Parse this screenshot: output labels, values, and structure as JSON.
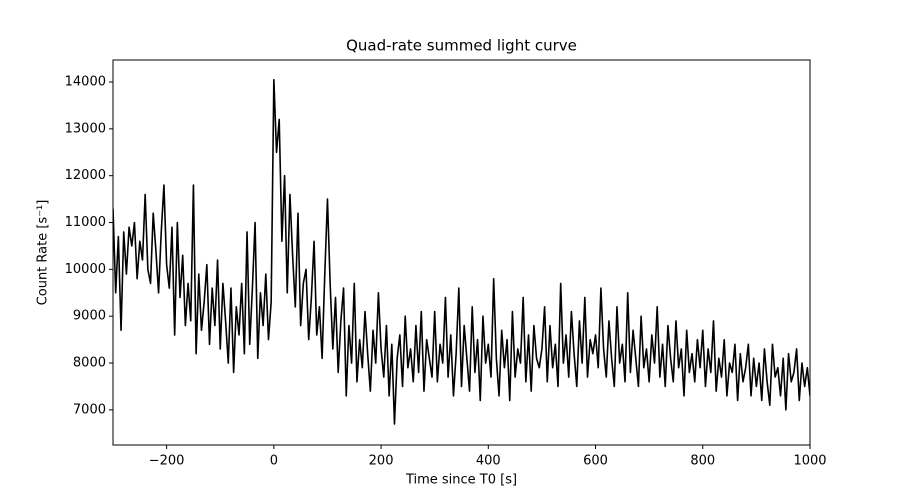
{
  "chart_data": {
    "type": "line",
    "title": "Quad-rate summed light curve",
    "xlabel": "Time since T0 [s]",
    "ylabel": "Count Rate [s⁻¹]",
    "xlim": [
      -300,
      1000
    ],
    "ylim": [
      6250,
      14470
    ],
    "xticks": [
      {
        "value": -200,
        "label": "−200"
      },
      0,
      200,
      400,
      600,
      800,
      1000
    ],
    "yticks": [
      7000,
      8000,
      9000,
      10000,
      11000,
      12000,
      13000,
      14000
    ],
    "x": [
      -300,
      -295,
      -290,
      -285,
      -280,
      -275,
      -270,
      -265,
      -260,
      -255,
      -250,
      -245,
      -240,
      -235,
      -230,
      -225,
      -220,
      -215,
      -210,
      -205,
      -200,
      -195,
      -190,
      -185,
      -180,
      -175,
      -170,
      -165,
      -160,
      -155,
      -150,
      -145,
      -140,
      -135,
      -130,
      -125,
      -120,
      -115,
      -110,
      -105,
      -100,
      -95,
      -90,
      -85,
      -80,
      -75,
      -70,
      -65,
      -60,
      -55,
      -50,
      -45,
      -40,
      -35,
      -30,
      -25,
      -20,
      -15,
      -10,
      -5,
      0,
      5,
      10,
      15,
      20,
      25,
      30,
      35,
      40,
      45,
      50,
      55,
      60,
      65,
      70,
      75,
      80,
      85,
      90,
      95,
      100,
      105,
      110,
      115,
      120,
      125,
      130,
      135,
      140,
      145,
      150,
      155,
      160,
      165,
      170,
      175,
      180,
      185,
      190,
      195,
      200,
      205,
      210,
      215,
      220,
      225,
      230,
      235,
      240,
      245,
      250,
      255,
      260,
      265,
      270,
      275,
      280,
      285,
      290,
      295,
      300,
      305,
      310,
      315,
      320,
      325,
      330,
      335,
      340,
      345,
      350,
      355,
      360,
      365,
      370,
      375,
      380,
      385,
      390,
      395,
      400,
      405,
      410,
      415,
      420,
      425,
      430,
      435,
      440,
      445,
      450,
      455,
      460,
      465,
      470,
      475,
      480,
      485,
      490,
      495,
      500,
      505,
      510,
      515,
      520,
      525,
      530,
      535,
      540,
      545,
      550,
      555,
      560,
      565,
      570,
      575,
      580,
      585,
      590,
      595,
      600,
      605,
      610,
      615,
      620,
      625,
      630,
      635,
      640,
      645,
      650,
      655,
      660,
      665,
      670,
      675,
      680,
      685,
      690,
      695,
      700,
      705,
      710,
      715,
      720,
      725,
      730,
      735,
      740,
      745,
      750,
      755,
      760,
      765,
      770,
      775,
      780,
      785,
      790,
      795,
      800,
      805,
      810,
      815,
      820,
      825,
      830,
      835,
      840,
      845,
      850,
      855,
      860,
      865,
      870,
      875,
      880,
      885,
      890,
      895,
      900,
      905,
      910,
      915,
      920,
      925,
      930,
      935,
      940,
      945,
      950,
      955,
      960,
      965,
      970,
      975,
      980,
      985,
      990,
      995,
      1000
    ],
    "series": [
      {
        "color": "#000000",
        "values": [
          11300,
          9500,
          10700,
          8700,
          10800,
          9900,
          10900,
          10500,
          11000,
          9800,
          10600,
          10200,
          11600,
          10000,
          9700,
          11200,
          10400,
          9500,
          10800,
          11800,
          10100,
          9600,
          10900,
          8600,
          11000,
          9400,
          10300,
          8800,
          9700,
          8900,
          11800,
          8200,
          9900,
          8700,
          9300,
          10100,
          8400,
          9600,
          8800,
          10200,
          8300,
          9700,
          8900,
          8000,
          9600,
          7800,
          9200,
          8600,
          9700,
          8200,
          10800,
          8400,
          9600,
          11000,
          8100,
          9500,
          8800,
          9900,
          8500,
          9300,
          14050,
          12500,
          13200,
          10600,
          12000,
          9500,
          11600,
          10300,
          9200,
          11200,
          8800,
          9700,
          10000,
          8500,
          9400,
          10600,
          8600,
          9200,
          8100,
          9900,
          11500,
          9700,
          8300,
          9400,
          7800,
          8900,
          9600,
          7300,
          8800,
          8000,
          9700,
          7600,
          8500,
          7900,
          9100,
          8200,
          7400,
          8700,
          8000,
          9500,
          8300,
          7700,
          8800,
          7300,
          8400,
          6700,
          8100,
          8600,
          7500,
          9000,
          7900,
          8300,
          7600,
          8800,
          7800,
          9100,
          7400,
          8500,
          8100,
          7700,
          9100,
          7600,
          8400,
          8000,
          9400,
          7700,
          8600,
          7300,
          8200,
          9600,
          7500,
          8800,
          8100,
          7400,
          9200,
          7800,
          8500,
          7200,
          9000,
          8000,
          8400,
          7700,
          9800,
          8100,
          7300,
          8700,
          7900,
          8500,
          7200,
          9100,
          7700,
          8300,
          8000,
          9400,
          7600,
          8600,
          7400,
          8800,
          8100,
          7900,
          8300,
          9200,
          7600,
          8800,
          7900,
          8400,
          7500,
          9700,
          8000,
          8600,
          7700,
          9100,
          8200,
          7500,
          8900,
          8000,
          9400,
          7700,
          8500,
          8200,
          8600,
          7900,
          9600,
          8300,
          7700,
          8900,
          8100,
          7500,
          9200,
          8000,
          8400,
          7600,
          9500,
          7800,
          8700,
          8100,
          7500,
          9000,
          7900,
          8300,
          7600,
          8600,
          8000,
          9200,
          7700,
          8400,
          7500,
          8800,
          8100,
          7600,
          8900,
          7900,
          8300,
          7300,
          8700,
          7800,
          8200,
          7600,
          8500,
          7900,
          8700,
          7500,
          8300,
          7800,
          8900,
          7400,
          8100,
          7700,
          8500,
          7300,
          8000,
          7800,
          8400,
          7200,
          8200,
          7600,
          7900,
          8400,
          7300,
          8100,
          7500,
          8000,
          7200,
          8300,
          7600,
          7100,
          8400,
          7700,
          7900,
          7300,
          8100,
          7000,
          8200,
          7600,
          7800,
          8300,
          7200,
          8000,
          7500,
          7900,
          7300
        ]
      }
    ]
  }
}
